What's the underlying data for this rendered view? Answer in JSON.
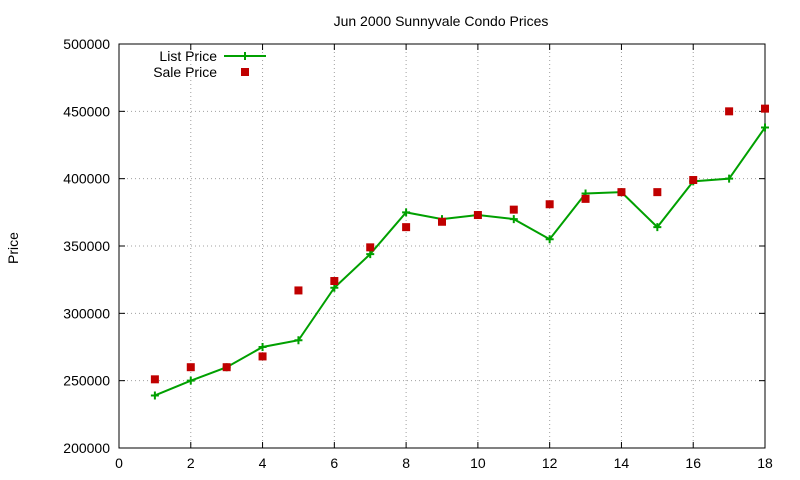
{
  "chart_data": {
    "type": "line",
    "title": "Jun 2000 Sunnyvale Condo Prices",
    "xlabel": "",
    "ylabel": "Price",
    "xlim": [
      0,
      18
    ],
    "ylim": [
      200000,
      500000
    ],
    "xticks": [
      0,
      2,
      4,
      6,
      8,
      10,
      12,
      14,
      16,
      18
    ],
    "yticks": [
      200000,
      250000,
      300000,
      350000,
      400000,
      450000,
      500000
    ],
    "grid": true,
    "legend_position": "top-left",
    "series": [
      {
        "name": "List Price",
        "style": "line-points",
        "color": "#00a000",
        "x": [
          1,
          2,
          3,
          4,
          5,
          6,
          7,
          8,
          9,
          10,
          11,
          12,
          13,
          14,
          15,
          16,
          17,
          18
        ],
        "y": [
          239000,
          250000,
          260000,
          275000,
          280000,
          319000,
          344000,
          375000,
          370000,
          373000,
          370000,
          355000,
          389000,
          390000,
          364000,
          398000,
          400000,
          438000
        ]
      },
      {
        "name": "Sale Price",
        "style": "points",
        "color": "#c00000",
        "x": [
          1,
          2,
          3,
          4,
          5,
          6,
          7,
          8,
          9,
          10,
          11,
          12,
          13,
          14,
          15,
          16,
          17,
          18
        ],
        "y": [
          251000,
          260000,
          260000,
          268000,
          317000,
          324000,
          349000,
          364000,
          368000,
          373000,
          377000,
          381000,
          385000,
          390000,
          390000,
          399000,
          450000,
          452000
        ]
      }
    ]
  }
}
